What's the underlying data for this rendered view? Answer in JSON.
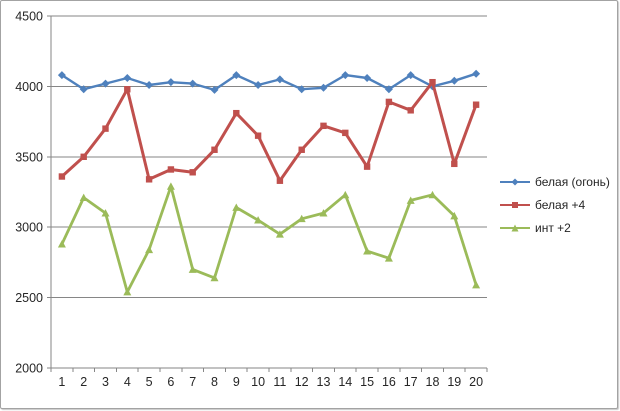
{
  "chart_data": {
    "type": "line",
    "title": "",
    "xlabel": "",
    "ylabel": "",
    "x": [
      1,
      2,
      3,
      4,
      5,
      6,
      7,
      8,
      9,
      10,
      11,
      12,
      13,
      14,
      15,
      16,
      17,
      18,
      19,
      20
    ],
    "ylim": [
      2000,
      4500
    ],
    "y_ticks": [
      2000,
      2500,
      3000,
      3500,
      4000,
      4500
    ],
    "grid": true,
    "legend_position": "right",
    "series": [
      {
        "name": "белая (огонь)",
        "color": "#4f81bd",
        "marker": "diamond",
        "values": [
          4080,
          3980,
          4020,
          4060,
          4010,
          4030,
          4020,
          3975,
          4080,
          4010,
          4050,
          3980,
          3990,
          4080,
          4060,
          3980,
          4080,
          4000,
          4040,
          4090
        ]
      },
      {
        "name": "белая +4",
        "color": "#c0504d",
        "marker": "square",
        "values": [
          3360,
          3500,
          3700,
          3980,
          3340,
          3410,
          3390,
          3550,
          3810,
          3650,
          3330,
          3550,
          3720,
          3670,
          3430,
          3890,
          3830,
          4030,
          3450,
          3870
        ]
      },
      {
        "name": "инт +2",
        "color": "#9bbb59",
        "marker": "triangle",
        "values": [
          2880,
          3210,
          3100,
          2540,
          2840,
          3290,
          2700,
          2640,
          3140,
          3050,
          2950,
          3060,
          3100,
          3230,
          2830,
          2780,
          3190,
          3230,
          3080,
          2590
        ]
      }
    ]
  },
  "colors": {
    "background": "#ffffff",
    "gridline": "#868686",
    "axis_line": "#868686",
    "tick_text": "#262626",
    "frame_border": "#a3a3a3"
  }
}
